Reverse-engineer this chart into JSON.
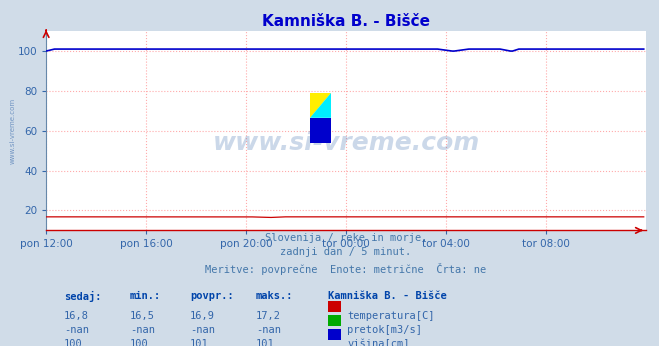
{
  "title": "Kamniška B. - Bišče",
  "title_color": "#0000cc",
  "bg_color": "#d0dce8",
  "plot_bg_color": "#ffffff",
  "grid_color_major": "#ffaaaa",
  "tick_color": "#3366aa",
  "watermark_text": "www.si-vreme.com",
  "watermark_color": "#3366aa",
  "watermark_alpha": 0.25,
  "left_label": "www.si-vreme.com",
  "subtitle_lines": [
    "Slovenija / reke in morje.",
    "zadnji dan / 5 minut.",
    "Meritve: povprečne  Enote: metrične  Črta: ne"
  ],
  "subtitle_color": "#4477aa",
  "legend_title": "Kamniška B. - Bišče",
  "legend_entries": [
    {
      "label": "temperatura[C]",
      "color": "#cc0000"
    },
    {
      "label": "pretok[m3/s]",
      "color": "#00aa00"
    },
    {
      "label": "višina[cm]",
      "color": "#0000cc"
    }
  ],
  "table_headers": [
    "sedaj:",
    "min.:",
    "povpr.:",
    "maks.:"
  ],
  "table_rows": [
    [
      "16,8",
      "16,5",
      "16,9",
      "17,2"
    ],
    [
      "-nan",
      "-nan",
      "-nan",
      "-nan"
    ],
    [
      "100",
      "100",
      "101",
      "101"
    ]
  ],
  "xlim": [
    0,
    288
  ],
  "ylim": [
    10,
    110
  ],
  "yticks": [
    20,
    40,
    60,
    80,
    100
  ],
  "xtick_labels": [
    "pon 12:00",
    "pon 16:00",
    "pon 20:00",
    "tor 00:00",
    "tor 04:00",
    "tor 08:00"
  ],
  "xtick_positions": [
    0,
    48,
    96,
    144,
    192,
    240
  ],
  "line_temperatura_color": "#cc0000",
  "line_visina_color": "#0000cc",
  "axis_arrow_color": "#cc0000"
}
